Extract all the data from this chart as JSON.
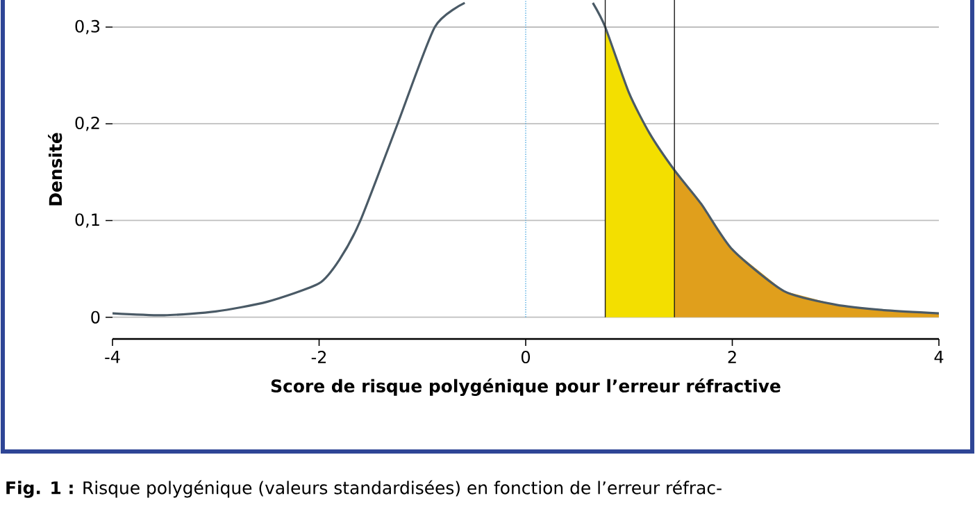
{
  "chart_data": {
    "type": "line",
    "xlabel": "Score de risque polygénique pour l’erreur réfractive",
    "ylabel": "Densité",
    "annotations": [
      "**Fig. 1 :** Risque polygénique (valeurs standardisées) en fonction de l’erreur réfrac-"
    ],
    "xlim": [
      -4,
      4
    ],
    "ylim": [
      -0.0225,
      0.328
    ],
    "xticks": [
      -4,
      -2,
      0,
      2,
      4
    ],
    "yticks": [
      {
        "value": 0,
        "label": "0"
      },
      {
        "value": 0.1,
        "label": "0,1"
      },
      {
        "value": 0.2,
        "label": "0,2"
      },
      {
        "value": 0.3,
        "label": "0,3"
      }
    ],
    "grid": "y",
    "series": [
      {
        "type": "area",
        "color": "#f3df00",
        "x": [
          0.77,
          1.0,
          1.2,
          1.44
        ],
        "values": [
          0.3,
          0.232,
          0.19,
          0.152
        ]
      },
      {
        "type": "area",
        "color": "#e09f1c",
        "x": [
          1.44,
          1.7,
          2.0,
          2.5,
          3.0,
          3.5,
          4.0
        ],
        "values": [
          0.152,
          0.117,
          0.07,
          0.027,
          0.013,
          0.007,
          0.004
        ]
      },
      {
        "color": "#4a5a66",
        "x": [
          -4,
          -3.5,
          -3,
          -2.5,
          -2,
          -1.8,
          -1.6,
          -1.24,
          -0.88,
          -0.59,
          -0.3,
          0.3,
          0.65,
          0.77,
          1.0,
          1.2,
          1.44,
          1.7,
          2.0,
          2.5,
          3.0,
          3.5,
          4.0
        ],
        "values": [
          0.004,
          0.002,
          0.006,
          0.016,
          0.035,
          0.06,
          0.1,
          0.2,
          0.3,
          0.325,
          null,
          null,
          0.325,
          0.3,
          0.232,
          0.19,
          0.152,
          0.117,
          0.07,
          0.027,
          0.013,
          0.007,
          0.004
        ]
      }
    ],
    "ref_lines": [
      {
        "axis": "x",
        "value": 0,
        "color": "#4aa8e0",
        "line_style": "dotted"
      },
      {
        "axis": "x",
        "value": 0.77,
        "color": "#1a1a1a",
        "line_style": "solid"
      },
      {
        "axis": "x",
        "value": 1.44,
        "color": "#1a1a1a",
        "line_style": "solid"
      }
    ]
  }
}
